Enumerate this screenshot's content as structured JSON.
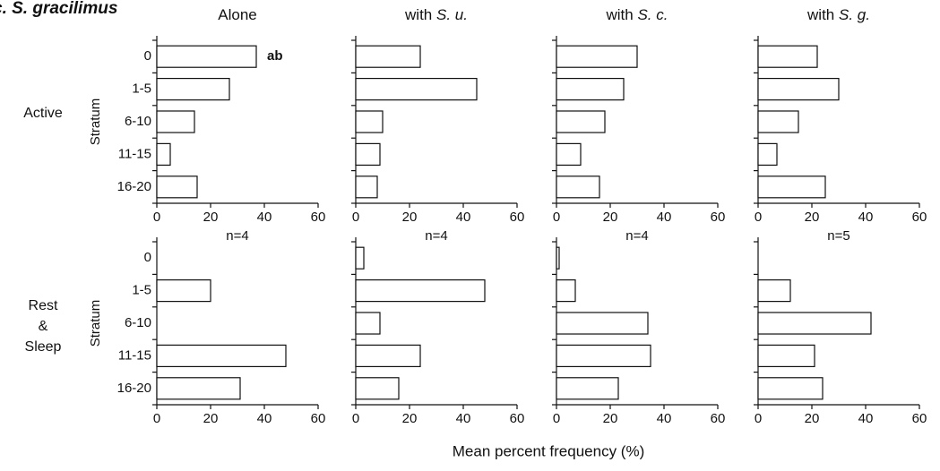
{
  "figure_label": "c. S. gracilimus",
  "row_labels": [
    {
      "lines": [
        "Active"
      ]
    },
    {
      "lines": [
        "Rest",
        "&",
        "Sleep"
      ]
    }
  ],
  "x_label": "Mean percent frequency (%)",
  "chart_data": [
    {
      "type": "bar",
      "orientation": "horizontal",
      "title": "Alone",
      "ylabel": "Stratum",
      "annotation": "ab",
      "categories": [
        "0",
        "1-5",
        "6-10",
        "11-15",
        "16-20"
      ],
      "values": [
        37,
        27,
        14,
        5,
        15
      ],
      "xlim": [
        0,
        60
      ],
      "xticks": [
        0,
        20,
        40,
        60
      ],
      "color": "#ffffff"
    },
    {
      "type": "bar",
      "orientation": "horizontal",
      "title": "with",
      "title_italic": "S. u.",
      "values": [
        24,
        45,
        10,
        9,
        8
      ],
      "xlim": [
        0,
        60
      ],
      "xticks": [
        0,
        20,
        40,
        60
      ],
      "color": "#ffffff"
    },
    {
      "type": "bar",
      "orientation": "horizontal",
      "title": "with",
      "title_italic": "S. c.",
      "values": [
        30,
        25,
        18,
        9,
        16
      ],
      "xlim": [
        0,
        60
      ],
      "xticks": [
        0,
        20,
        40,
        60
      ],
      "color": "#ffffff"
    },
    {
      "type": "bar",
      "orientation": "horizontal",
      "title": "with",
      "title_italic": "S. g.",
      "values": [
        22,
        30,
        15,
        7,
        25
      ],
      "xlim": [
        0,
        60
      ],
      "xticks": [
        0,
        20,
        40,
        60
      ],
      "color": "#ffffff"
    },
    {
      "type": "bar",
      "orientation": "horizontal",
      "ylabel": "Stratum",
      "annotation": "n=4",
      "categories": [
        "0",
        "1-5",
        "6-10",
        "11-15",
        "16-20"
      ],
      "values": [
        0,
        20,
        0,
        48,
        31
      ],
      "xlim": [
        0,
        60
      ],
      "xticks": [
        0,
        20,
        40,
        60
      ],
      "color": "#ffffff"
    },
    {
      "type": "bar",
      "orientation": "horizontal",
      "annotation": "n=4",
      "values": [
        3,
        48,
        9,
        24,
        16
      ],
      "xlim": [
        0,
        60
      ],
      "xticks": [
        0,
        20,
        40,
        60
      ],
      "color": "#ffffff"
    },
    {
      "type": "bar",
      "orientation": "horizontal",
      "annotation": "n=4",
      "values": [
        1,
        7,
        34,
        35,
        23
      ],
      "xlim": [
        0,
        60
      ],
      "xticks": [
        0,
        20,
        40,
        60
      ],
      "color": "#ffffff"
    },
    {
      "type": "bar",
      "orientation": "horizontal",
      "annotation": "n=5",
      "values": [
        0,
        12,
        42,
        21,
        24
      ],
      "xlim": [
        0,
        60
      ],
      "xticks": [
        0,
        20,
        40,
        60
      ],
      "color": "#ffffff"
    }
  ]
}
